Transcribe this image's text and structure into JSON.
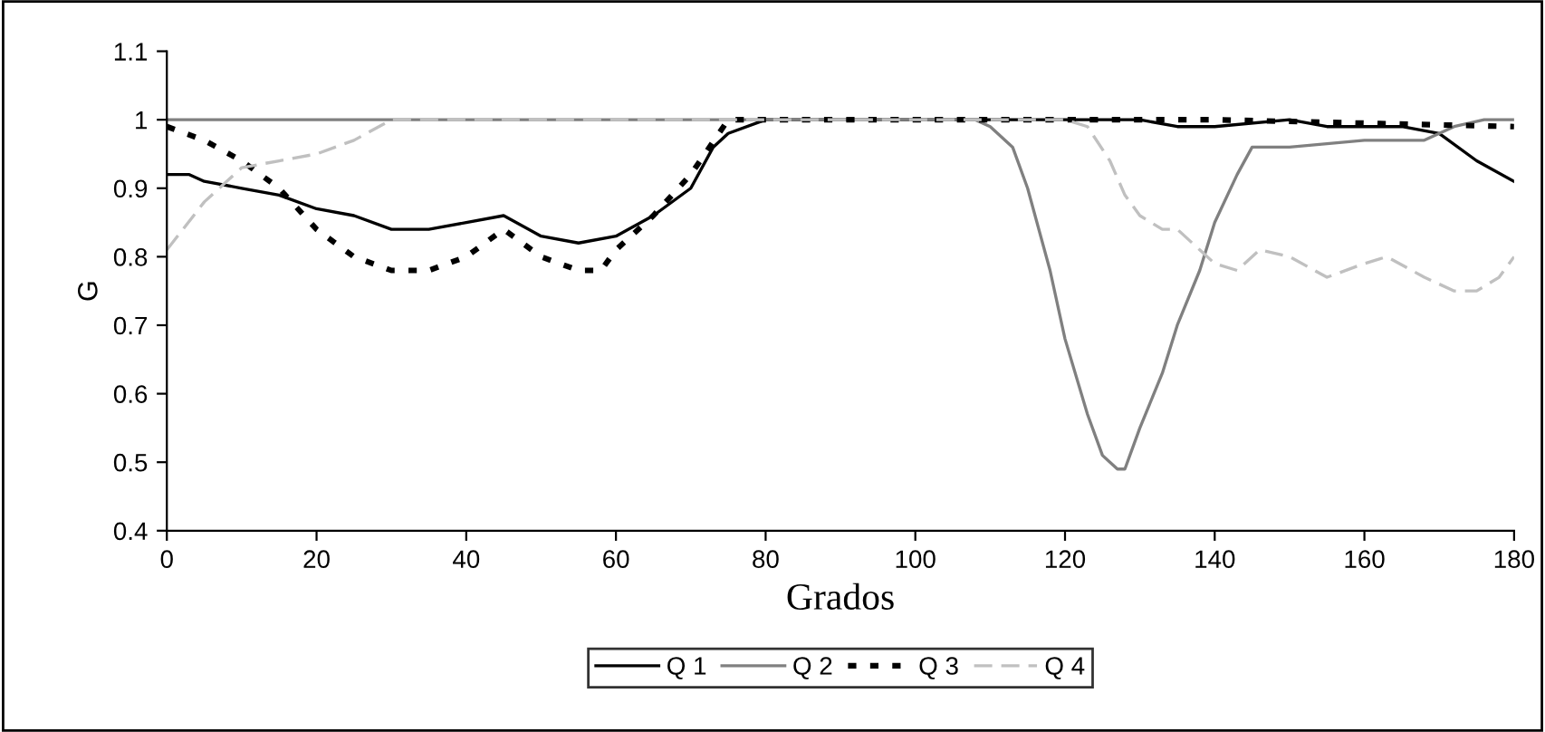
{
  "chart_data": {
    "type": "line",
    "xlabel": "Grados",
    "ylabel": "G",
    "xlim": [
      0,
      180
    ],
    "ylim": [
      0.4,
      1.1
    ],
    "xticks": [
      0,
      20,
      40,
      60,
      80,
      100,
      120,
      140,
      160,
      180
    ],
    "yticks": [
      0.4,
      0.5,
      0.6,
      0.7,
      0.8,
      0.9,
      1,
      1.1
    ],
    "grid": false,
    "legend": "bottom",
    "marker": "none",
    "series": [
      {
        "name": "Q 1",
        "color": "#000000",
        "line_style": "solid",
        "x": [
          0,
          3,
          5,
          10,
          15,
          20,
          25,
          30,
          35,
          40,
          45,
          50,
          55,
          60,
          65,
          70,
          73,
          75,
          80,
          100,
          130,
          135,
          140,
          150,
          155,
          165,
          170,
          175,
          180
        ],
        "values": [
          0.92,
          0.92,
          0.91,
          0.9,
          0.89,
          0.87,
          0.86,
          0.84,
          0.84,
          0.85,
          0.86,
          0.83,
          0.82,
          0.83,
          0.86,
          0.9,
          0.96,
          0.98,
          1,
          1,
          1,
          0.99,
          0.99,
          1,
          0.99,
          0.99,
          0.98,
          0.94,
          0.91
        ]
      },
      {
        "name": "Q 2",
        "color": "#808080",
        "line_style": "solid",
        "x": [
          0,
          108,
          110,
          113,
          115,
          118,
          120,
          123,
          125,
          127,
          128,
          130,
          133,
          135,
          138,
          140,
          143,
          145,
          150,
          160,
          168,
          172,
          176,
          180
        ],
        "values": [
          1,
          1,
          0.99,
          0.96,
          0.9,
          0.78,
          0.68,
          0.57,
          0.51,
          0.49,
          0.49,
          0.55,
          0.63,
          0.7,
          0.78,
          0.85,
          0.92,
          0.96,
          0.96,
          0.97,
          0.97,
          0.99,
          1,
          1
        ]
      },
      {
        "name": "Q 3",
        "color": "#000000",
        "line_style": "dotted",
        "x": [
          0,
          5,
          10,
          15,
          20,
          25,
          30,
          35,
          40,
          45,
          50,
          55,
          58,
          60,
          65,
          70,
          75,
          80,
          140,
          180
        ],
        "values": [
          0.99,
          0.97,
          0.94,
          0.9,
          0.84,
          0.8,
          0.78,
          0.78,
          0.8,
          0.84,
          0.8,
          0.78,
          0.78,
          0.81,
          0.86,
          0.92,
          1,
          1,
          1,
          0.99
        ]
      },
      {
        "name": "Q 4",
        "color": "#c0c0c0",
        "line_style": "dashed",
        "x": [
          0,
          5,
          10,
          15,
          20,
          25,
          30,
          120,
          123,
          126,
          128,
          130,
          133,
          135,
          138,
          140,
          143,
          146,
          150,
          155,
          160,
          163,
          168,
          172,
          175,
          178,
          180
        ],
        "values": [
          0.81,
          0.88,
          0.93,
          0.94,
          0.95,
          0.97,
          1,
          1,
          0.99,
          0.94,
          0.89,
          0.86,
          0.84,
          0.84,
          0.81,
          0.79,
          0.78,
          0.81,
          0.8,
          0.77,
          0.79,
          0.8,
          0.77,
          0.75,
          0.75,
          0.77,
          0.8
        ]
      }
    ]
  }
}
